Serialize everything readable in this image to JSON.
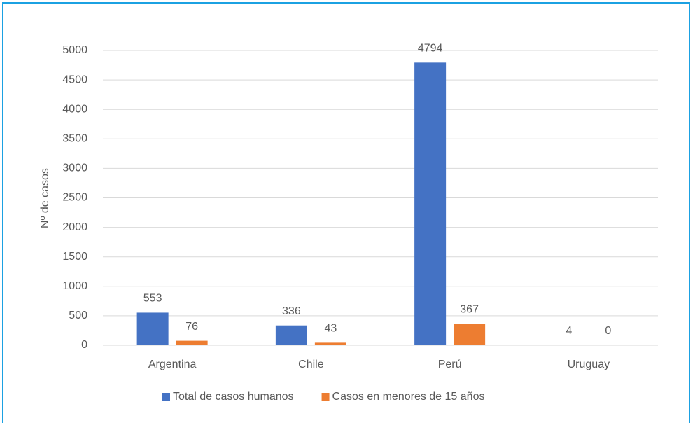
{
  "chart_data": {
    "type": "bar",
    "y_label": "Nº de casos",
    "categories": [
      "Argentina",
      "Chile",
      "Perú",
      "Uruguay"
    ],
    "series": [
      {
        "name": "Total de casos humanos",
        "color": "#4472c4",
        "values": [
          553,
          336,
          4794,
          4
        ]
      },
      {
        "name": "Casos en menores de 15 años",
        "color": "#ed7d31",
        "values": [
          76,
          43,
          367,
          0
        ]
      }
    ],
    "ylim": [
      0,
      5000
    ],
    "yticks": [
      0,
      500,
      1000,
      1500,
      2000,
      2500,
      3000,
      3500,
      4000,
      4500,
      5000
    ],
    "grid": true,
    "legend": "bottom"
  }
}
